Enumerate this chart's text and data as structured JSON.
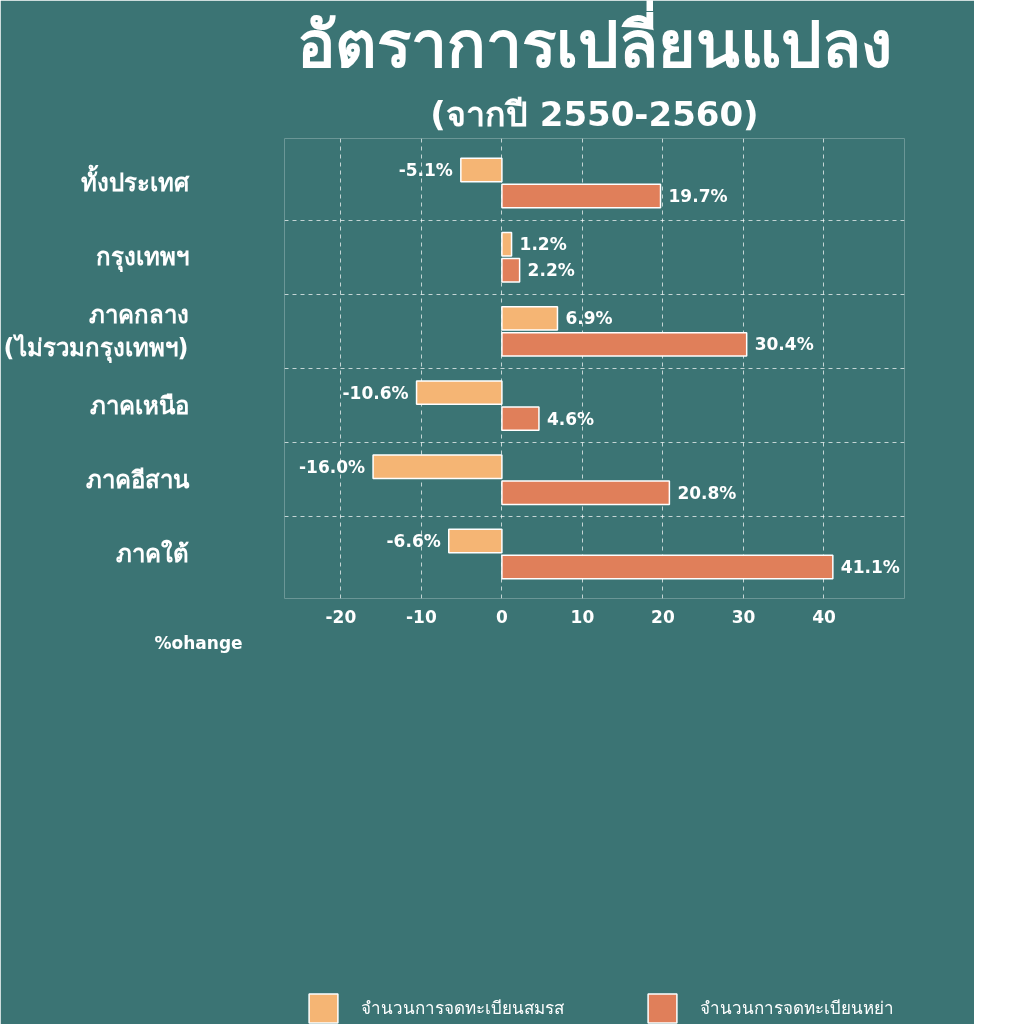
{
  "chart_data": {
    "type": "bar",
    "orientation": "horizontal",
    "title": "อัตราการเปลี่ยนแปลง",
    "subtitle": "(จากปี 2550-2560)",
    "xlabel": "%ohange",
    "categories": [
      "ทั้งประเทศ",
      "กรุงเทพฯ",
      "ภาคกลาง\n(ไม่รวมกรุงเทพฯ)",
      "ภาคเหนือ",
      "ภาคอีสาน",
      "ภาคใต้"
    ],
    "series": [
      {
        "name": "จำนวนการจดทะเบียนสมรส",
        "color": "#f5b574",
        "values": [
          -5.1,
          1.2,
          6.9,
          -10.6,
          -16.0,
          -6.6
        ],
        "value_labels": [
          "-5.1%",
          "1.2%",
          "6.9%",
          "-10.6%",
          "-16.0%",
          "-6.6%"
        ]
      },
      {
        "name": "จำนวนการจดทะเบียนหย่า",
        "color": "#e07f5a",
        "values": [
          19.7,
          2.2,
          30.4,
          4.6,
          20.8,
          41.1
        ],
        "value_labels": [
          "19.7%",
          "2.2%",
          "30.4%",
          "4.6%",
          "20.8%",
          "41.1%"
        ]
      }
    ],
    "xlim": [
      -27,
      50
    ],
    "xticks": [
      -20,
      -10,
      0,
      10,
      20,
      30,
      40
    ],
    "grid": true,
    "legend": "bottom"
  }
}
